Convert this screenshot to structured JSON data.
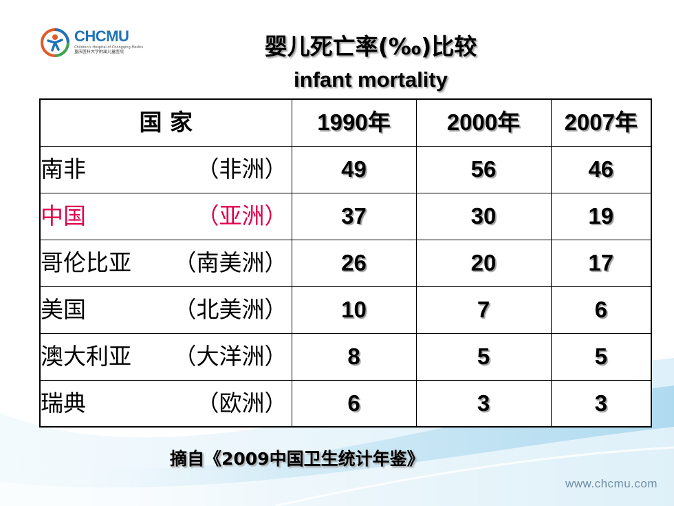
{
  "logo": {
    "name": "CHCMU",
    "subtitle_en": "Children's Hospital of Chongqing Medical University",
    "subtitle_cn": "重庆医科大学附属儿童医院"
  },
  "title": "婴儿死亡率(‰)比较",
  "subtitle": "infant mortality",
  "table": {
    "header": {
      "country": "国  家",
      "years": [
        "1990年",
        "2000年",
        "2007年"
      ]
    },
    "rows": [
      {
        "country": "南非",
        "region": "（非洲）",
        "values": [
          "49",
          "56",
          "46"
        ],
        "highlight": false
      },
      {
        "country": "中国",
        "region": "（亚洲）",
        "values": [
          "37",
          "30",
          "19"
        ],
        "highlight": true
      },
      {
        "country": "哥伦比亚",
        "region": "（南美洲）",
        "values": [
          "26",
          "20",
          "17"
        ],
        "highlight": false
      },
      {
        "country": "美国",
        "region": "（北美洲）",
        "values": [
          "10",
          "7",
          "6"
        ],
        "highlight": false
      },
      {
        "country": "澳大利亚",
        "region": "（大洋洲）",
        "values": [
          "8",
          "5",
          "5"
        ],
        "highlight": false
      },
      {
        "country": "瑞典",
        "region": "（欧洲）",
        "values": [
          "6",
          "3",
          "3"
        ],
        "highlight": false
      }
    ]
  },
  "source": "摘自《2009中国卫生统计年鉴》",
  "url": "www.chcmu.com",
  "colors": {
    "highlight": "#e0004d",
    "logo_blue": "#1f73b8",
    "wave_light": "#d6eef9",
    "wave_mid": "#a9d8ee"
  }
}
